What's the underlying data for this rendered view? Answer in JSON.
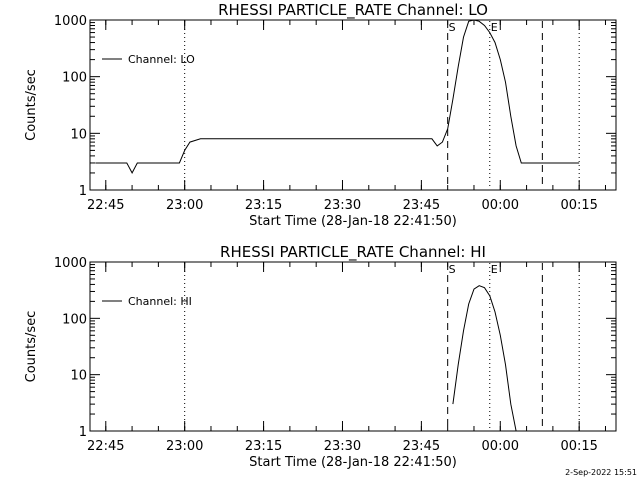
{
  "footer": {
    "timestamp": "2-Sep-2022 15:51"
  },
  "chart_data": [
    {
      "type": "line",
      "title": "RHESSI PARTICLE_RATE Channel: LO",
      "xlabel": "Start Time (28-Jan-18 22:41:50)",
      "ylabel": "Counts/sec",
      "y_scale": "log",
      "ylim": [
        1,
        1000
      ],
      "y_ticks": [
        "1",
        "10",
        "100",
        "1000"
      ],
      "xlim": [
        "22:42",
        "00:22"
      ],
      "x_ticks": [
        "22:45",
        "23:00",
        "23:15",
        "23:30",
        "23:45",
        "00:00",
        "00:15"
      ],
      "grid": false,
      "legend": {
        "position": "top-left",
        "entries": [
          "Channel: LO"
        ]
      },
      "markers": [
        {
          "time": "23:00",
          "style": "dotted",
          "label": ""
        },
        {
          "time": "23:50",
          "style": "dashed",
          "label": "S"
        },
        {
          "time": "23:58",
          "style": "dotted",
          "label": "E"
        },
        {
          "time": "00:08",
          "style": "dashed",
          "label": ""
        },
        {
          "time": "00:15",
          "style": "dotted",
          "label": ""
        }
      ],
      "series": [
        {
          "name": "Channel: LO",
          "x": [
            "22:43",
            "22:44",
            "22:45",
            "22:46",
            "22:47",
            "22:48",
            "22:49",
            "22:50",
            "22:51",
            "22:52",
            "22:53",
            "22:54",
            "22:55",
            "22:56",
            "22:57",
            "22:58",
            "22:59",
            "23:00",
            "23:01",
            "23:03",
            "23:05",
            "23:08",
            "23:10",
            "23:13",
            "23:15",
            "23:18",
            "23:20",
            "23:23",
            "23:25",
            "23:28",
            "23:30",
            "23:33",
            "23:35",
            "23:38",
            "23:40",
            "23:43",
            "23:45",
            "23:47",
            "23:48",
            "23:49",
            "23:50",
            "23:51",
            "23:52",
            "23:53",
            "23:54",
            "23:55",
            "23:56",
            "23:57",
            "23:58",
            "23:59",
            "00:00",
            "00:01",
            "00:02",
            "00:03",
            "00:04",
            "00:05",
            "00:06",
            "00:07",
            "00:08",
            "00:10",
            "00:12",
            "00:14",
            "00:15"
          ],
          "y": [
            3,
            3,
            3,
            3,
            3,
            3,
            3,
            2,
            3,
            3,
            3,
            3,
            3,
            3,
            3,
            3,
            3,
            5,
            7,
            8,
            8,
            8,
            8,
            8,
            8,
            8,
            8,
            8,
            8,
            8,
            8,
            8,
            8,
            8,
            8,
            8,
            8,
            8,
            6,
            7,
            12,
            40,
            150,
            500,
            950,
            1000,
            950,
            800,
            600,
            400,
            200,
            80,
            20,
            6,
            3,
            3,
            3,
            3,
            3,
            3,
            3,
            3,
            3
          ]
        }
      ]
    },
    {
      "type": "line",
      "title": "RHESSI PARTICLE_RATE Channel: HI",
      "xlabel": "Start Time (28-Jan-18 22:41:50)",
      "ylabel": "Counts/sec",
      "y_scale": "log",
      "ylim": [
        1,
        1000
      ],
      "y_ticks": [
        "1",
        "10",
        "100",
        "1000"
      ],
      "xlim": [
        "22:42",
        "00:22"
      ],
      "x_ticks": [
        "22:45",
        "23:00",
        "23:15",
        "23:30",
        "23:45",
        "00:00",
        "00:15"
      ],
      "grid": false,
      "legend": {
        "position": "top-left",
        "entries": [
          "Channel: HI"
        ]
      },
      "markers": [
        {
          "time": "23:00",
          "style": "dotted",
          "label": ""
        },
        {
          "time": "23:50",
          "style": "dashed",
          "label": "S"
        },
        {
          "time": "23:58",
          "style": "dotted",
          "label": "E"
        },
        {
          "time": "00:08",
          "style": "dashed",
          "label": ""
        },
        {
          "time": "00:15",
          "style": "dotted",
          "label": ""
        }
      ],
      "series": [
        {
          "name": "Channel: HI",
          "x": [
            "23:51",
            "23:52",
            "23:53",
            "23:54",
            "23:55",
            "23:56",
            "23:57",
            "23:58",
            "23:59",
            "00:00",
            "00:01",
            "00:02",
            "00:03"
          ],
          "y": [
            3,
            15,
            60,
            180,
            330,
            380,
            350,
            250,
            130,
            50,
            15,
            3,
            1
          ]
        }
      ]
    }
  ]
}
